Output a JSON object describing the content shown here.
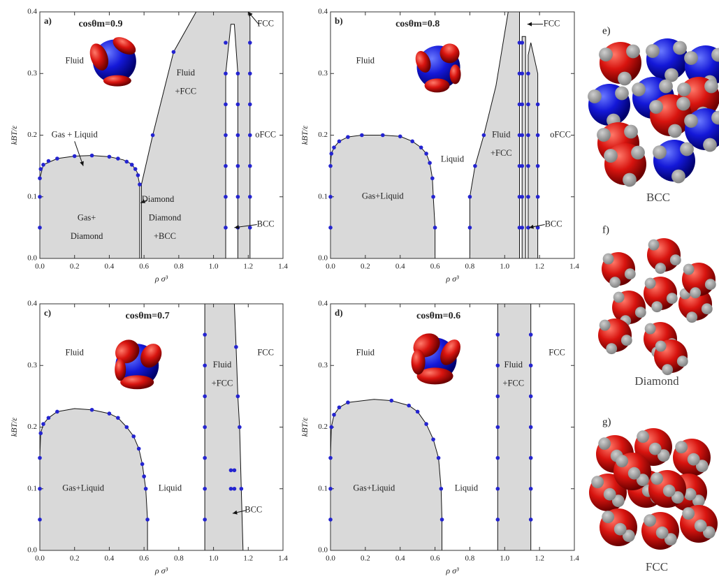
{
  "chart_data": [
    {
      "type": "phase",
      "panel": "a)",
      "subtitle": "cosθm=0.9",
      "xlabel": "ρ σ³",
      "ylabel": "kBT/ε",
      "xlim": [
        0,
        1.4
      ],
      "ylim": [
        0,
        0.4
      ],
      "xticks": [
        {
          "value": 0,
          "label": "0.0"
        },
        0.2,
        0.4,
        0.6,
        0.8,
        {
          "value": 1,
          "label": "1.0"
        },
        1.2,
        1.4
      ],
      "yticks": [
        {
          "value": 0,
          "label": "0.0"
        },
        0.1,
        0.2,
        0.3,
        0.4
      ],
      "color": "#2424d0",
      "region_color": "#d9d9d9",
      "regions": [
        {
          "x": [
            0,
            0,
            0.02,
            0.1,
            0.2,
            0.3,
            0.4,
            0.48,
            0.53,
            0.56,
            0.575,
            0.575
          ],
          "y": [
            0,
            0.13,
            0.152,
            0.162,
            0.166,
            0.167,
            0.165,
            0.16,
            0.153,
            0.14,
            0.12,
            0
          ]
        },
        {
          "x": [
            0.585,
            0.585,
            0.65,
            0.77,
            0.9,
            1.2,
            1.21,
            1.21,
            1.14,
            1.14,
            1.12,
            1.1,
            1.07,
            1.07
          ],
          "y": [
            0,
            0.12,
            0.2,
            0.335,
            0.4,
            0.4,
            0.39,
            0,
            0,
            0.3,
            0.38,
            0.38,
            0.3,
            0
          ]
        }
      ],
      "points": {
        "x": [
          0,
          0,
          0,
          0.005,
          0.02,
          0.05,
          0.1,
          0.2,
          0.3,
          0.4,
          0.45,
          0.5,
          0.53,
          0.55,
          0.565,
          0.575,
          0.65,
          0.77,
          1.07,
          1.07,
          1.07,
          1.07,
          1.07,
          1.07,
          1.07,
          1.14,
          1.14,
          1.14,
          1.14,
          1.14,
          1.14,
          1.21,
          1.21,
          1.21,
          1.21,
          1.21,
          1.21,
          1.21
        ],
        "y": [
          0.05,
          0.1,
          0.13,
          0.145,
          0.152,
          0.158,
          0.162,
          0.166,
          0.167,
          0.165,
          0.162,
          0.157,
          0.152,
          0.145,
          0.135,
          0.12,
          0.2,
          0.335,
          0.05,
          0.1,
          0.15,
          0.2,
          0.25,
          0.3,
          0.35,
          0.05,
          0.1,
          0.15,
          0.2,
          0.25,
          0.3,
          0.05,
          0.1,
          0.15,
          0.2,
          0.25,
          0.3,
          0.35
        ]
      },
      "annotations": [
        "Fluid",
        "Gas + Liquid",
        "Gas+",
        "Diamond",
        "Diamond",
        "+BCC",
        "Diamond",
        "Fluid",
        "+FCC",
        "FCC",
        "oFCC",
        "BCC"
      ]
    },
    {
      "type": "phase",
      "panel": "b)",
      "subtitle": "cosθm=0.8",
      "xlabel": "ρ σ³",
      "ylabel": "kBT/ε",
      "xlim": [
        0,
        1.4
      ],
      "ylim": [
        0,
        0.4
      ],
      "xticks": [
        {
          "value": 0,
          "label": "0.0"
        },
        0.2,
        0.4,
        0.6,
        0.8,
        {
          "value": 1,
          "label": "1.0"
        },
        1.2,
        1.4
      ],
      "yticks": [
        {
          "value": 0,
          "label": "0.0"
        },
        0.1,
        0.2,
        0.3,
        0.4
      ],
      "color": "#2424d0",
      "region_color": "#d9d9d9",
      "regions": [
        {
          "x": [
            0,
            0,
            0.005,
            0.02,
            0.05,
            0.1,
            0.18,
            0.3,
            0.4,
            0.47,
            0.52,
            0.55,
            0.57,
            0.585,
            0.59,
            0.6,
            0.6
          ],
          "y": [
            0,
            0.15,
            0.17,
            0.18,
            0.19,
            0.197,
            0.2,
            0.2,
            0.198,
            0.19,
            0.18,
            0.17,
            0.155,
            0.13,
            0.1,
            0.05,
            0
          ]
        },
        {
          "x": [
            0.8,
            0.8,
            0.83,
            0.88,
            0.95,
            1.02,
            1.085,
            1.085
          ],
          "y": [
            0,
            0.1,
            0.15,
            0.2,
            0.28,
            0.4,
            0.4,
            0
          ]
        },
        {
          "x": [
            1.1,
            1.1,
            1.12,
            1.12
          ],
          "y": [
            0,
            0.36,
            0.36,
            0
          ]
        },
        {
          "x": [
            1.135,
            1.135,
            1.15,
            1.19,
            1.19
          ],
          "y": [
            0,
            0.33,
            0.35,
            0.3,
            0
          ]
        }
      ],
      "points": {
        "x": [
          0,
          0,
          0,
          0.005,
          0.02,
          0.05,
          0.1,
          0.18,
          0.3,
          0.4,
          0.47,
          0.52,
          0.55,
          0.57,
          0.585,
          0.59,
          0.6,
          0.8,
          0.8,
          0.83,
          0.88,
          1.085,
          1.085,
          1.085,
          1.085,
          1.085,
          1.085,
          1.085,
          1.1,
          1.1,
          1.1,
          1.1,
          1.1,
          1.1,
          1.1,
          1.135,
          1.135,
          1.135,
          1.135,
          1.135,
          1.135,
          1.19,
          1.19,
          1.19,
          1.19,
          1.19
        ],
        "y": [
          0.05,
          0.1,
          0.15,
          0.17,
          0.18,
          0.19,
          0.197,
          0.2,
          0.2,
          0.198,
          0.19,
          0.18,
          0.17,
          0.155,
          0.13,
          0.1,
          0.05,
          0.05,
          0.1,
          0.15,
          0.2,
          0.05,
          0.1,
          0.15,
          0.2,
          0.25,
          0.3,
          0.35,
          0.05,
          0.1,
          0.15,
          0.2,
          0.25,
          0.3,
          0.35,
          0.05,
          0.1,
          0.15,
          0.2,
          0.25,
          0.3,
          0.05,
          0.1,
          0.15,
          0.2,
          0.25
        ]
      },
      "annotations": [
        "Fluid",
        "Liquid",
        "Gas+Liquid",
        "Fluid",
        "+FCC",
        "oFCC",
        "FCC",
        "BCC"
      ]
    },
    {
      "type": "phase",
      "panel": "c)",
      "subtitle": "cosθm=0.7",
      "xlabel": "ρ σ³",
      "ylabel": "kBT/ε",
      "xlim": [
        0,
        1.4
      ],
      "ylim": [
        0,
        0.4
      ],
      "xticks": [
        {
          "value": 0,
          "label": "0.0"
        },
        0.2,
        0.4,
        0.6,
        0.8,
        {
          "value": 1,
          "label": "1.0"
        },
        1.2,
        1.4
      ],
      "yticks": [
        {
          "value": 0,
          "label": "0.0"
        },
        0.1,
        0.2,
        0.3,
        0.4
      ],
      "color": "#2424d0",
      "region_color": "#d9d9d9",
      "regions": [
        {
          "x": [
            0,
            0,
            0.005,
            0.02,
            0.05,
            0.1,
            0.2,
            0.3,
            0.4,
            0.45,
            0.5,
            0.54,
            0.57,
            0.59,
            0.6,
            0.61,
            0.62,
            0.62
          ],
          "y": [
            0,
            0.15,
            0.19,
            0.205,
            0.215,
            0.225,
            0.23,
            0.228,
            0.222,
            0.215,
            0.2,
            0.185,
            0.165,
            0.14,
            0.12,
            0.1,
            0.05,
            0
          ]
        },
        {
          "x": [
            0.95,
            0.95,
            1.12,
            1.13,
            1.14,
            1.15,
            1.16,
            1.17
          ],
          "y": [
            0,
            0.4,
            0.4,
            0.33,
            0.25,
            0.2,
            0.1,
            0
          ]
        }
      ],
      "points": {
        "x": [
          0,
          0,
          0,
          0.005,
          0.02,
          0.05,
          0.1,
          0.3,
          0.4,
          0.45,
          0.5,
          0.54,
          0.57,
          0.59,
          0.6,
          0.61,
          0.62,
          0.95,
          0.95,
          0.95,
          0.95,
          0.95,
          0.95,
          0.95,
          1.13,
          1.14,
          1.15,
          1.16,
          1.1,
          1.1,
          1.12,
          1.12
        ],
        "y": [
          0.05,
          0.1,
          0.15,
          0.19,
          0.205,
          0.215,
          0.225,
          0.228,
          0.222,
          0.215,
          0.2,
          0.185,
          0.165,
          0.14,
          0.12,
          0.1,
          0.05,
          0.05,
          0.1,
          0.15,
          0.2,
          0.25,
          0.3,
          0.35,
          0.33,
          0.25,
          0.2,
          0.1,
          0.1,
          0.13,
          0.1,
          0.13
        ]
      },
      "annotations": [
        "Fluid",
        "FCC",
        "Fluid",
        "+FCC",
        "Gas+Liquid",
        "Liquid",
        "BCC"
      ]
    },
    {
      "type": "phase",
      "panel": "d)",
      "subtitle": "cosθm=0.6",
      "xlabel": "ρ σ³",
      "ylabel": "kBT/ε",
      "xlim": [
        0,
        1.4
      ],
      "ylim": [
        0,
        0.4
      ],
      "xticks": [
        {
          "value": 0,
          "label": "0.0"
        },
        0.2,
        0.4,
        0.6,
        0.8,
        {
          "value": 1,
          "label": "1.0"
        },
        1.2,
        1.4
      ],
      "yticks": [
        {
          "value": 0,
          "label": "0.0"
        },
        0.1,
        0.2,
        0.3,
        0.4
      ],
      "color": "#2424d0",
      "region_color": "#d9d9d9",
      "regions": [
        {
          "x": [
            0,
            0,
            0.005,
            0.02,
            0.05,
            0.1,
            0.25,
            0.35,
            0.45,
            0.5,
            0.55,
            0.59,
            0.62,
            0.635,
            0.64,
            0.64
          ],
          "y": [
            0,
            0.15,
            0.2,
            0.22,
            0.232,
            0.24,
            0.245,
            0.243,
            0.235,
            0.225,
            0.205,
            0.18,
            0.15,
            0.1,
            0.05,
            0
          ]
        },
        {
          "x": [
            0.96,
            0.96,
            1.15,
            1.15
          ],
          "y": [
            0,
            0.4,
            0.4,
            0
          ]
        }
      ],
      "points": {
        "x": [
          0,
          0,
          0,
          0.005,
          0.02,
          0.05,
          0.1,
          0.35,
          0.45,
          0.5,
          0.55,
          0.59,
          0.62,
          0.635,
          0.64,
          0.96,
          0.96,
          0.96,
          0.96,
          0.96,
          0.96,
          0.96,
          1.15,
          1.15,
          1.15,
          1.15,
          1.15,
          1.15,
          1.15
        ],
        "y": [
          0.05,
          0.1,
          0.15,
          0.2,
          0.22,
          0.232,
          0.24,
          0.243,
          0.235,
          0.225,
          0.205,
          0.18,
          0.15,
          0.1,
          0.05,
          0.05,
          0.1,
          0.15,
          0.2,
          0.25,
          0.3,
          0.35,
          0.05,
          0.1,
          0.15,
          0.2,
          0.25,
          0.3,
          0.35
        ]
      },
      "annotations": [
        "Fluid",
        "FCC",
        "Fluid",
        "+FCC",
        "Gas+Liquid",
        "Liquid"
      ]
    }
  ],
  "figures": [
    {
      "label": "e)",
      "caption": "BCC"
    },
    {
      "label": "f)",
      "caption": "Diamond"
    },
    {
      "label": "g)",
      "caption": "FCC"
    }
  ]
}
